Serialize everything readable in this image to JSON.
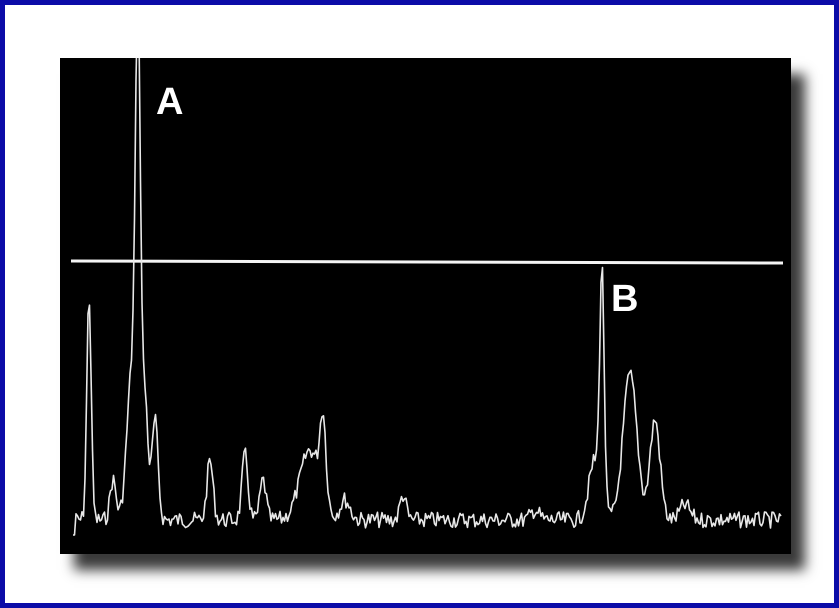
{
  "labels": {
    "peak_a": "A",
    "peak_b": "B"
  }
}
